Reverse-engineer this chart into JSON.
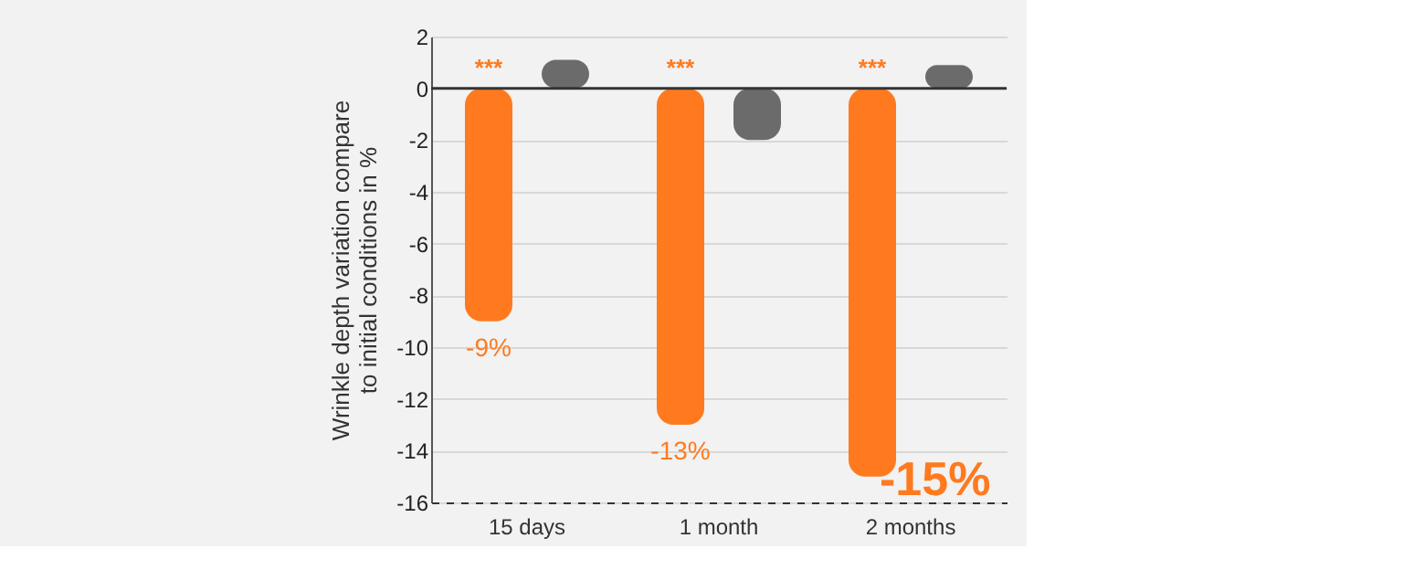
{
  "chart_data": {
    "type": "bar",
    "ylabel": "Wrinkle depth variation compare to initial conditions in %",
    "categories": [
      "15 days",
      "1 month",
      "2 months"
    ],
    "series": [
      {
        "color": "#ff7a1f",
        "values": [
          -9,
          -13,
          -15
        ],
        "value_labels": [
          "-9%",
          "-13%",
          "-15%"
        ]
      },
      {
        "color": "#6b6b6b",
        "values": [
          1.1,
          -2.0,
          0.9
        ]
      }
    ],
    "annotations": [
      "***",
      "***",
      "***"
    ],
    "ref_lines": [
      {
        "axis": "y",
        "value": 0,
        "color": "#333333"
      }
    ],
    "ylim": [
      -16,
      2
    ],
    "yticks": [
      -16,
      -14,
      -12,
      -10,
      -8,
      -6,
      -4,
      -2,
      0,
      2
    ],
    "grid": "y",
    "legend": false
  }
}
